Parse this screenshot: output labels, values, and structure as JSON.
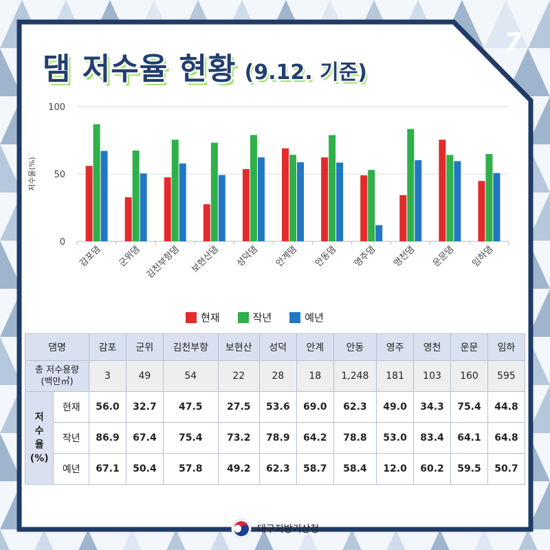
{
  "page_number": "7",
  "title": "댐 저수율 현황",
  "subtitle": "(9.12. 기준)",
  "colors": {
    "current": "#e32b2b",
    "last_year": "#2fb04a",
    "normal": "#2277c4",
    "frame": "#1f3b66",
    "header_bg": "#d9e1f0"
  },
  "chart_data": {
    "type": "bar",
    "categories": [
      "감포댐",
      "군위댐",
      "김천부항댐",
      "보현산댐",
      "성덕댐",
      "안계댐",
      "안동댐",
      "영주댐",
      "영천댐",
      "운문댐",
      "임하댐"
    ],
    "series": [
      {
        "name": "현재",
        "color": "#e32b2b",
        "values": [
          56.0,
          32.7,
          47.5,
          27.5,
          53.6,
          69.0,
          62.3,
          49.0,
          34.3,
          75.4,
          44.8
        ]
      },
      {
        "name": "작년",
        "color": "#2fb04a",
        "values": [
          86.9,
          67.4,
          75.4,
          73.2,
          78.9,
          64.2,
          78.8,
          53.0,
          83.4,
          64.1,
          64.8
        ]
      },
      {
        "name": "예년",
        "color": "#2277c4",
        "values": [
          67.1,
          50.4,
          57.8,
          49.2,
          62.3,
          58.7,
          58.4,
          12.0,
          60.2,
          59.5,
          50.7
        ]
      }
    ],
    "ylabel": "저수율(%)",
    "yticks": [
      "0",
      "50",
      "100"
    ],
    "ylim": [
      0,
      100
    ],
    "grid": true,
    "legend_position": "bottom"
  },
  "table": {
    "header_label": "댐명",
    "dams": [
      "감포",
      "군위",
      "김천부항",
      "보현산",
      "성덕",
      "안계",
      "안동",
      "영주",
      "영천",
      "운문",
      "임하"
    ],
    "capacity_label": "총 저수용량",
    "capacity_unit": "(백만㎥)",
    "capacity": [
      "3",
      "49",
      "54",
      "22",
      "28",
      "18",
      "1,248",
      "181",
      "103",
      "160",
      "595"
    ],
    "group_label_chars": [
      "저",
      "수",
      "율",
      "(%)"
    ],
    "rows": [
      {
        "label": "현재",
        "values": [
          "56.0",
          "32.7",
          "47.5",
          "27.5",
          "53.6",
          "69.0",
          "62.3",
          "49.0",
          "34.3",
          "75.4",
          "44.8"
        ]
      },
      {
        "label": "작년",
        "values": [
          "86.9",
          "67.4",
          "75.4",
          "73.2",
          "78.9",
          "64.2",
          "78.8",
          "53.0",
          "83.4",
          "64.1",
          "64.8"
        ]
      },
      {
        "label": "예년",
        "values": [
          "67.1",
          "50.4",
          "57.8",
          "49.2",
          "62.3",
          "58.7",
          "58.4",
          "12.0",
          "60.2",
          "59.5",
          "50.7"
        ]
      }
    ]
  },
  "footer": {
    "org_name": "대구지방기상청",
    "logo_icon": "taegeuk-emblem-icon"
  }
}
